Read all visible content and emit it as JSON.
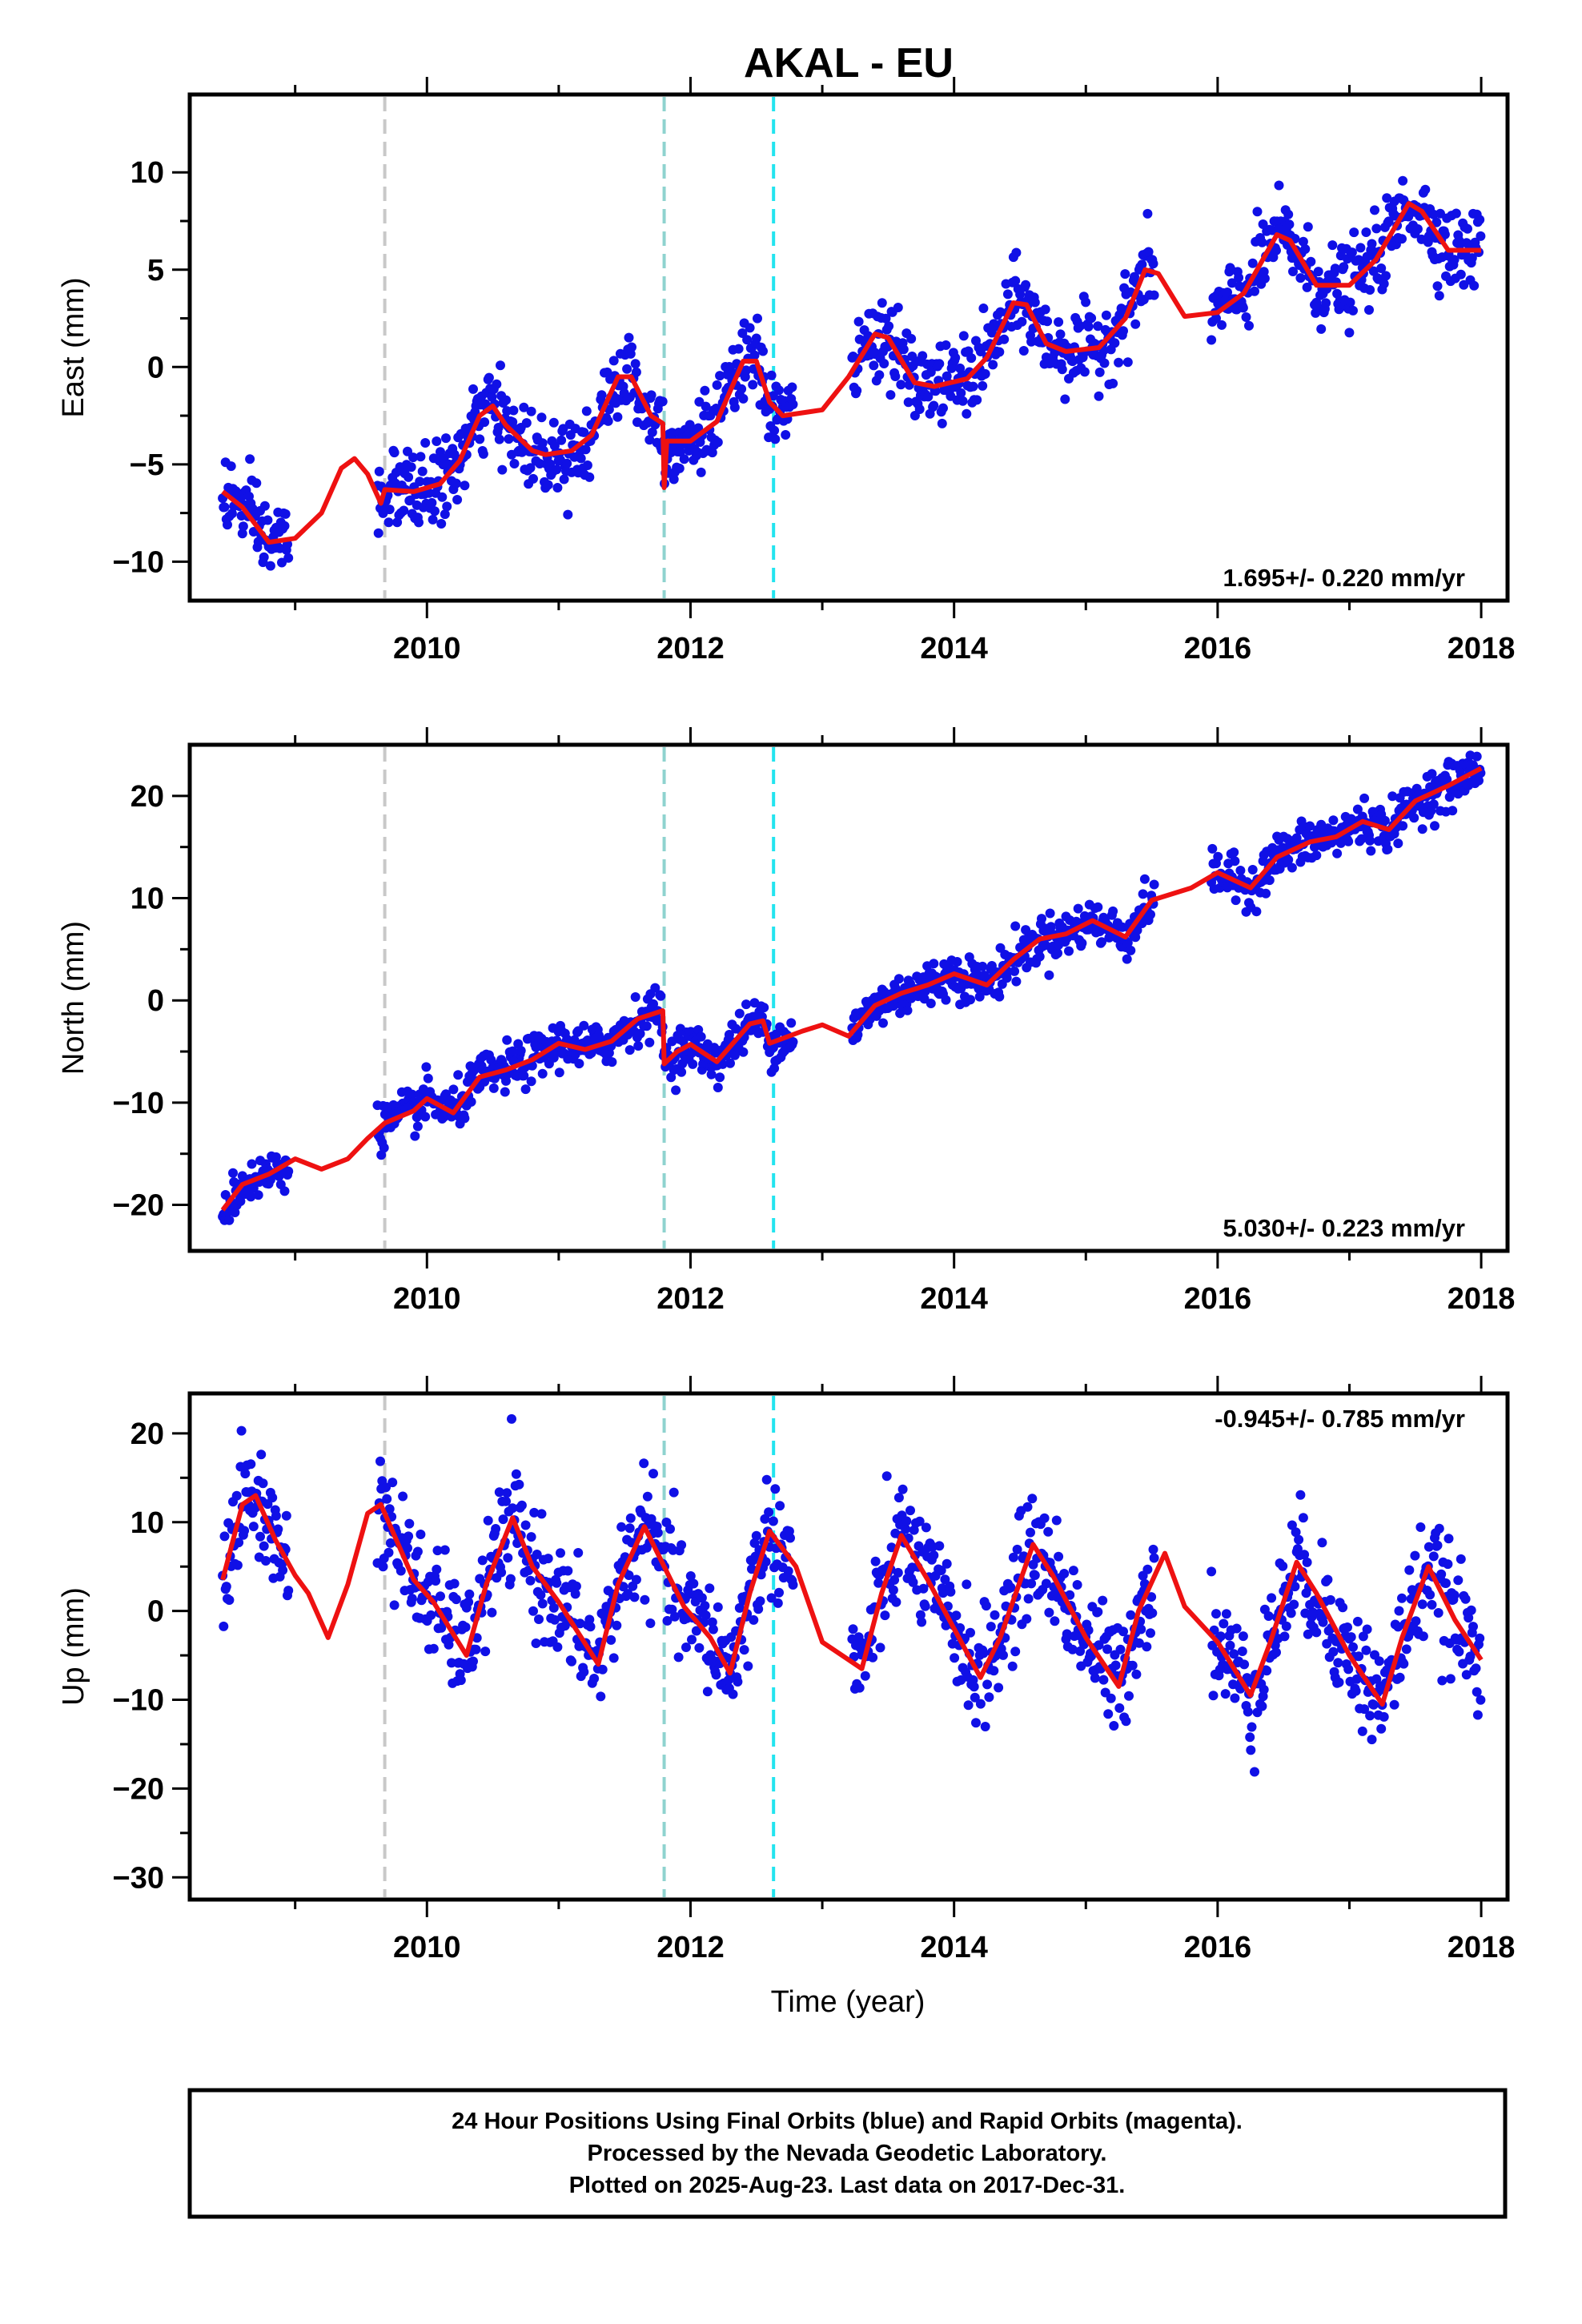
{
  "chart_data": {
    "type": "scatter",
    "title": "AKAL - EU",
    "xlabel": "Time (year)",
    "xlim": [
      2008.2,
      2018.2
    ],
    "x_ticks": [
      2010,
      2012,
      2014,
      2016,
      2018
    ],
    "x_tick_labels": [
      "2010",
      "2012",
      "2014",
      "2016",
      "2018"
    ],
    "vertical_lines": [
      {
        "x": 2009.68,
        "color": "#c8c8c8"
      },
      {
        "x": 2011.8,
        "color": "#8fd3cf"
      },
      {
        "x": 2012.63,
        "color": "#22e4ef"
      }
    ],
    "colors": {
      "points": "#1010e6",
      "model": "#ee1111",
      "frame": "#000000"
    },
    "panels": [
      {
        "name": "east",
        "ylabel": "East (mm)",
        "ylim": [
          -12,
          14
        ],
        "y_ticks": [
          -10,
          -5,
          0,
          5,
          10
        ],
        "y_tick_labels": [
          "−10",
          "−5",
          "0",
          "5",
          "10"
        ],
        "rate": "1.695+/- 0.220 mm/yr",
        "rate_position": "bottom-right",
        "model": [
          [
            2008.45,
            -6.4
          ],
          [
            2008.6,
            -7.2
          ],
          [
            2008.8,
            -9.0
          ],
          [
            2009.0,
            -8.8
          ],
          [
            2009.2,
            -7.5
          ],
          [
            2009.35,
            -5.2
          ],
          [
            2009.45,
            -4.7
          ],
          [
            2009.55,
            -5.5
          ],
          [
            2009.65,
            -7.0
          ],
          [
            2009.68,
            -6.3
          ],
          [
            2009.9,
            -6.4
          ],
          [
            2010.1,
            -6.0
          ],
          [
            2010.25,
            -4.8
          ],
          [
            2010.4,
            -2.5
          ],
          [
            2010.5,
            -2.0
          ],
          [
            2010.6,
            -3.0
          ],
          [
            2010.8,
            -4.3
          ],
          [
            2010.9,
            -4.5
          ],
          [
            2011.1,
            -4.3
          ],
          [
            2011.25,
            -3.5
          ],
          [
            2011.45,
            -0.5
          ],
          [
            2011.55,
            -0.5
          ],
          [
            2011.7,
            -2.5
          ],
          [
            2011.79,
            -2.9
          ],
          [
            2011.8,
            -6.2
          ],
          [
            2011.82,
            -3.8
          ],
          [
            2012.0,
            -3.8
          ],
          [
            2012.2,
            -2.8
          ],
          [
            2012.4,
            0.3
          ],
          [
            2012.5,
            0.3
          ],
          [
            2012.6,
            -1.8
          ],
          [
            2012.7,
            -2.5
          ],
          [
            2013.0,
            -2.2
          ],
          [
            2013.2,
            -0.5
          ],
          [
            2013.4,
            1.7
          ],
          [
            2013.5,
            1.5
          ],
          [
            2013.7,
            -0.8
          ],
          [
            2013.85,
            -1.0
          ],
          [
            2014.1,
            -0.6
          ],
          [
            2014.25,
            0.5
          ],
          [
            2014.45,
            3.3
          ],
          [
            2014.55,
            3.2
          ],
          [
            2014.7,
            1.2
          ],
          [
            2014.85,
            0.8
          ],
          [
            2015.1,
            1.0
          ],
          [
            2015.3,
            2.5
          ],
          [
            2015.45,
            5.0
          ],
          [
            2015.55,
            4.8
          ],
          [
            2015.75,
            2.6
          ],
          [
            2016.0,
            2.8
          ],
          [
            2016.2,
            3.8
          ],
          [
            2016.45,
            6.8
          ],
          [
            2016.55,
            6.5
          ],
          [
            2016.75,
            4.2
          ],
          [
            2017.0,
            4.2
          ],
          [
            2017.2,
            5.5
          ],
          [
            2017.45,
            8.4
          ],
          [
            2017.55,
            8.0
          ],
          [
            2017.75,
            6.0
          ],
          [
            2018.0,
            6.0
          ]
        ],
        "gaps": [
          [
            2008.95,
            2009.62
          ],
          [
            2012.78,
            2013.22
          ],
          [
            2015.52,
            2015.95
          ]
        ]
      },
      {
        "name": "north",
        "ylabel": "North (mm)",
        "ylim": [
          -24.5,
          25
        ],
        "y_ticks": [
          -20,
          -10,
          0,
          10,
          20
        ],
        "y_tick_labels": [
          "−20",
          "−10",
          "0",
          "10",
          "20"
        ],
        "rate": "5.030+/- 0.223 mm/yr",
        "rate_position": "bottom-right",
        "model": [
          [
            2008.45,
            -20.5
          ],
          [
            2008.6,
            -18.0
          ],
          [
            2008.8,
            -17.0
          ],
          [
            2009.0,
            -15.5
          ],
          [
            2009.2,
            -16.5
          ],
          [
            2009.4,
            -15.5
          ],
          [
            2009.55,
            -13.5
          ],
          [
            2009.68,
            -12.0
          ],
          [
            2009.9,
            -10.8
          ],
          [
            2010.0,
            -9.6
          ],
          [
            2010.2,
            -11.0
          ],
          [
            2010.4,
            -7.5
          ],
          [
            2010.6,
            -6.8
          ],
          [
            2010.8,
            -5.8
          ],
          [
            2011.0,
            -4.2
          ],
          [
            2011.2,
            -4.8
          ],
          [
            2011.4,
            -4.0
          ],
          [
            2011.6,
            -1.8
          ],
          [
            2011.79,
            -1.0
          ],
          [
            2011.8,
            -6.2
          ],
          [
            2011.9,
            -5.0
          ],
          [
            2012.0,
            -4.3
          ],
          [
            2012.2,
            -6.0
          ],
          [
            2012.45,
            -2.3
          ],
          [
            2012.55,
            -2.0
          ],
          [
            2012.6,
            -4.2
          ],
          [
            2012.85,
            -3.0
          ],
          [
            2013.0,
            -2.4
          ],
          [
            2013.2,
            -3.5
          ],
          [
            2013.4,
            -0.5
          ],
          [
            2013.6,
            0.7
          ],
          [
            2013.8,
            1.5
          ],
          [
            2014.0,
            2.6
          ],
          [
            2014.25,
            1.5
          ],
          [
            2014.45,
            4.0
          ],
          [
            2014.65,
            6.0
          ],
          [
            2014.85,
            6.5
          ],
          [
            2015.05,
            7.8
          ],
          [
            2015.3,
            6.2
          ],
          [
            2015.5,
            9.8
          ],
          [
            2015.8,
            11.0
          ],
          [
            2016.0,
            12.5
          ],
          [
            2016.25,
            11.0
          ],
          [
            2016.45,
            14.0
          ],
          [
            2016.7,
            15.5
          ],
          [
            2016.9,
            16.0
          ],
          [
            2017.1,
            17.5
          ],
          [
            2017.3,
            16.7
          ],
          [
            2017.5,
            19.5
          ],
          [
            2017.75,
            21.0
          ],
          [
            2018.0,
            22.7
          ]
        ],
        "gaps": [
          [
            2008.95,
            2009.62
          ],
          [
            2012.78,
            2013.22
          ],
          [
            2015.52,
            2015.95
          ]
        ]
      },
      {
        "name": "up",
        "ylabel": "Up (mm)",
        "ylim": [
          -32.5,
          24.5
        ],
        "y_ticks": [
          -30,
          -20,
          -10,
          0,
          10,
          20
        ],
        "y_tick_labels": [
          "−30",
          "−20",
          "−10",
          "0",
          "10",
          "20"
        ],
        "rate": "-0.945+/- 0.785 mm/yr",
        "rate_position": "top-right",
        "model": [
          [
            2008.45,
            3.5
          ],
          [
            2008.6,
            12.0
          ],
          [
            2008.7,
            13.0
          ],
          [
            2008.85,
            8.0
          ],
          [
            2009.0,
            4.0
          ],
          [
            2009.1,
            2.0
          ],
          [
            2009.25,
            -3.0
          ],
          [
            2009.4,
            3.0
          ],
          [
            2009.55,
            11.0
          ],
          [
            2009.65,
            12.0
          ],
          [
            2009.9,
            3.5
          ],
          [
            2010.05,
            1.0
          ],
          [
            2010.3,
            -5.0
          ],
          [
            2010.45,
            3.0
          ],
          [
            2010.65,
            10.5
          ],
          [
            2010.8,
            5.0
          ],
          [
            2011.0,
            1.0
          ],
          [
            2011.3,
            -6.0
          ],
          [
            2011.45,
            3.0
          ],
          [
            2011.65,
            9.5
          ],
          [
            2011.8,
            5.0
          ],
          [
            2011.95,
            0.5
          ],
          [
            2012.15,
            -3.0
          ],
          [
            2012.3,
            -7.0
          ],
          [
            2012.45,
            2.0
          ],
          [
            2012.6,
            9.0
          ],
          [
            2012.8,
            5.0
          ],
          [
            2013.0,
            -3.5
          ],
          [
            2013.2,
            -5.5
          ],
          [
            2013.3,
            -6.5
          ],
          [
            2013.45,
            2.0
          ],
          [
            2013.6,
            8.5
          ],
          [
            2013.8,
            3.5
          ],
          [
            2014.0,
            -2.0
          ],
          [
            2014.2,
            -7.5
          ],
          [
            2014.35,
            -3.0
          ],
          [
            2014.6,
            7.5
          ],
          [
            2014.75,
            4.0
          ],
          [
            2015.0,
            -3.0
          ],
          [
            2015.25,
            -8.5
          ],
          [
            2015.4,
            0.0
          ],
          [
            2015.6,
            6.5
          ],
          [
            2015.75,
            0.5
          ],
          [
            2016.0,
            -3.5
          ],
          [
            2016.25,
            -9.5
          ],
          [
            2016.4,
            -3.5
          ],
          [
            2016.6,
            5.5
          ],
          [
            2016.75,
            2.0
          ],
          [
            2017.0,
            -5.0
          ],
          [
            2017.25,
            -10.5
          ],
          [
            2017.4,
            -3.0
          ],
          [
            2017.6,
            5.0
          ],
          [
            2017.8,
            -1.0
          ],
          [
            2018.0,
            -5.5
          ]
        ],
        "gaps": [
          [
            2008.95,
            2009.62
          ],
          [
            2012.78,
            2013.22
          ],
          [
            2015.52,
            2015.95
          ]
        ]
      }
    ]
  },
  "footer": {
    "lines": [
      "24 Hour Positions Using Final Orbits (blue) and Rapid Orbits (magenta).",
      "Processed by the Nevada Geodetic Laboratory.",
      "Plotted on 2025-Aug-23. Last data on 2017-Dec-31."
    ]
  }
}
